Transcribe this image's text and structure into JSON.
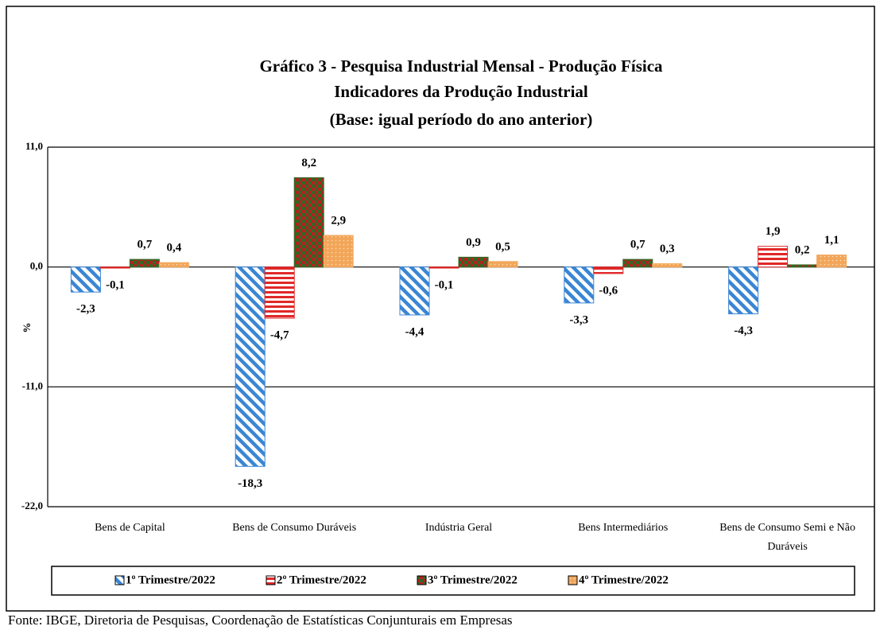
{
  "chart_data": {
    "type": "bar",
    "title_lines": [
      "Gráfico 3 - Pesquisa Industrial Mensal - Produção Física",
      "Indicadores da Produção Industrial",
      "(Base: igual período do ano anterior)"
    ],
    "ylabel": "%",
    "categories": [
      "Bens de Capital",
      "Bens de Consumo Duráveis",
      "Indústria Geral",
      "Bens Intermediários",
      "Bens de Consumo Semi e Não Duráveis"
    ],
    "series": [
      {
        "name": "1º Trimestre/2022",
        "color": "#3a86d4",
        "pattern": "diagonal",
        "values": [
          -2.3,
          -18.3,
          -4.4,
          -3.3,
          -4.3
        ],
        "value_labels": [
          "-2,3",
          "-18,3",
          "-4,4",
          "-3,3",
          "-4,3"
        ]
      },
      {
        "name": "2º Trimestre/2022",
        "color": "#e02828",
        "pattern": "horizontal",
        "values": [
          -0.1,
          -4.7,
          -0.1,
          -0.6,
          1.9
        ],
        "value_labels": [
          "-0,1",
          "-4,7",
          "-0,1",
          "-0,6",
          "1,9"
        ]
      },
      {
        "name": "3º Trimestre/2022",
        "color": "#2f6a22",
        "pattern": "checker",
        "values": [
          0.7,
          8.2,
          0.9,
          0.7,
          0.2
        ],
        "value_labels": [
          "0,7",
          "8,2",
          "0,9",
          "0,7",
          "0,2"
        ]
      },
      {
        "name": "4º Trimestre/2022",
        "color": "#f2a65a",
        "pattern": "dots",
        "values": [
          0.4,
          2.9,
          0.5,
          0.3,
          1.1
        ],
        "value_labels": [
          "0,4",
          "2,9",
          "0,5",
          "0,3",
          "1,1"
        ]
      }
    ],
    "ylim": [
      -22,
      11
    ],
    "yticks": [
      {
        "value": 11,
        "label": "11,0"
      },
      {
        "value": 0,
        "label": "0,0"
      },
      {
        "value": -11,
        "label": "-11,0"
      },
      {
        "value": -22,
        "label": "-22,0"
      }
    ],
    "grid": true,
    "legend": "bottom",
    "source": "Fonte: IBGE, Diretoria de Pesquisas, Coordenação de Estatísticas Conjunturais em Empresas"
  }
}
